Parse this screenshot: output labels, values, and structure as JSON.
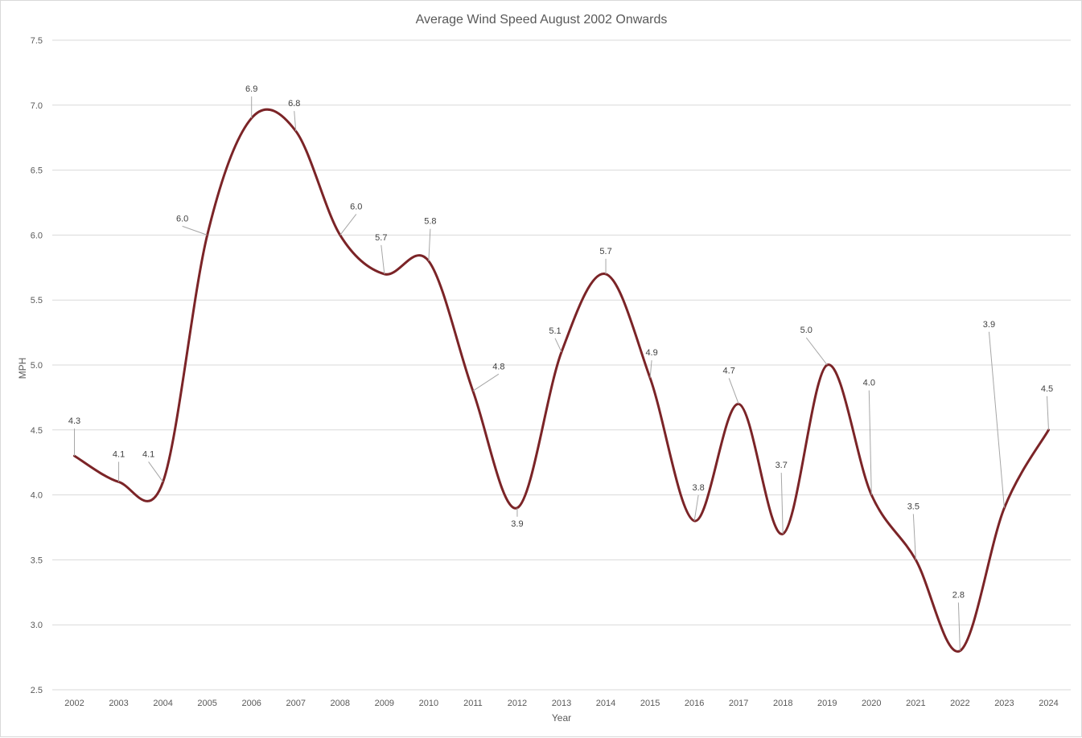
{
  "chart_data": {
    "type": "line",
    "title": "Average Wind Speed August 2002 Onwards",
    "xlabel": "Year",
    "ylabel": "MPH",
    "ylim": [
      2.5,
      7.5
    ],
    "y_ticks": [
      "2.5",
      "3.0",
      "3.5",
      "4.0",
      "4.5",
      "5.0",
      "5.5",
      "6.0",
      "6.5",
      "7.0",
      "7.5"
    ],
    "categories": [
      "2002",
      "2003",
      "2004",
      "2005",
      "2006",
      "2007",
      "2008",
      "2009",
      "2010",
      "2011",
      "2012",
      "2013",
      "2014",
      "2015",
      "2016",
      "2017",
      "2018",
      "2019",
      "2020",
      "2021",
      "2022",
      "2023",
      "2024"
    ],
    "series": [
      {
        "values": [
          4.3,
          4.1,
          4.1,
          6.0,
          6.9,
          6.8,
          6.0,
          5.7,
          5.8,
          4.8,
          3.9,
          5.1,
          5.7,
          4.9,
          3.8,
          4.7,
          3.7,
          5.0,
          4.0,
          3.5,
          2.8,
          3.9,
          4.5
        ],
        "data_labels": [
          "4.3",
          "4.1",
          "4.1",
          "6.0",
          "6.9",
          "6.8",
          "6.0",
          "5.7",
          "5.8",
          "4.8",
          "3.9",
          "5.1",
          "5.7",
          "4.9",
          "3.8",
          "4.7",
          "3.7",
          "5.0",
          "4.0",
          "3.5",
          "2.8",
          "3.9",
          "4.5"
        ],
        "color": "#7b2427",
        "smoothed": true
      }
    ],
    "grid": true,
    "legend": "none",
    "data_label_colors": {
      "text": "#404040",
      "leader": "#a6a6a6"
    }
  }
}
